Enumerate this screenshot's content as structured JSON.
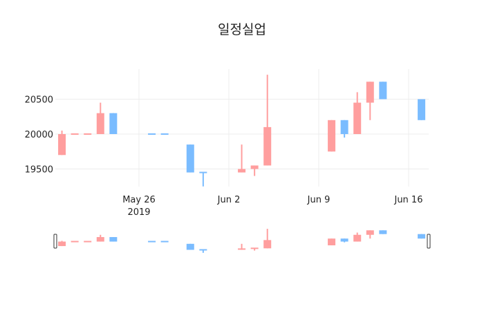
{
  "chart_data": {
    "type": "candlestick",
    "title": "일정실업",
    "xlabel": "",
    "ylabel": "",
    "x_ticks": [
      "May 26",
      "Jun 2",
      "Jun 9",
      "Jun 16"
    ],
    "x_tick_year": "2019",
    "y_ticks": [
      19500,
      20000,
      20500
    ],
    "ylim": [
      19150,
      20900
    ],
    "increasing_color": "#ff9e9e",
    "decreasing_color": "#7abcff",
    "grid": true,
    "rangeslider": true,
    "candles": [
      {
        "date": "2019-05-20",
        "open": 19700,
        "high": 20050,
        "low": 19700,
        "close": 20000
      },
      {
        "date": "2019-05-21",
        "open": 20000,
        "high": 20000,
        "low": 20000,
        "close": 20000,
        "dir": "up"
      },
      {
        "date": "2019-05-22",
        "open": 20000,
        "high": 20000,
        "low": 20000,
        "close": 20000,
        "dir": "up"
      },
      {
        "date": "2019-05-23",
        "open": 20000,
        "high": 20450,
        "low": 20000,
        "close": 20300
      },
      {
        "date": "2019-05-24",
        "open": 20300,
        "high": 20300,
        "low": 20000,
        "close": 20000
      },
      {
        "date": "2019-05-27",
        "open": 20000,
        "high": 20000,
        "low": 20000,
        "close": 20000,
        "dir": "down"
      },
      {
        "date": "2019-05-28",
        "open": 20000,
        "high": 20000,
        "low": 20000,
        "close": 20000,
        "dir": "down"
      },
      {
        "date": "2019-05-30",
        "open": 19850,
        "high": 19850,
        "low": 19450,
        "close": 19450
      },
      {
        "date": "2019-05-31",
        "open": 19450,
        "high": 19450,
        "low": 19250,
        "close": 19450,
        "dir": "down"
      },
      {
        "date": "2019-06-03",
        "open": 19450,
        "high": 19850,
        "low": 19450,
        "close": 19500
      },
      {
        "date": "2019-06-04",
        "open": 19500,
        "high": 19550,
        "low": 19400,
        "close": 19550
      },
      {
        "date": "2019-06-05",
        "open": 19550,
        "high": 20850,
        "low": 19550,
        "close": 20100
      },
      {
        "date": "2019-06-10",
        "open": 19750,
        "high": 20200,
        "low": 19750,
        "close": 20200
      },
      {
        "date": "2019-06-11",
        "open": 20200,
        "high": 20200,
        "low": 19950,
        "close": 20000
      },
      {
        "date": "2019-06-12",
        "open": 20000,
        "high": 20600,
        "low": 20000,
        "close": 20450
      },
      {
        "date": "2019-06-13",
        "open": 20450,
        "high": 20750,
        "low": 20200,
        "close": 20750
      },
      {
        "date": "2019-06-14",
        "open": 20750,
        "high": 20750,
        "low": 20500,
        "close": 20500
      },
      {
        "date": "2019-06-17",
        "open": 20500,
        "high": 20500,
        "low": 20200,
        "close": 20200
      }
    ]
  }
}
